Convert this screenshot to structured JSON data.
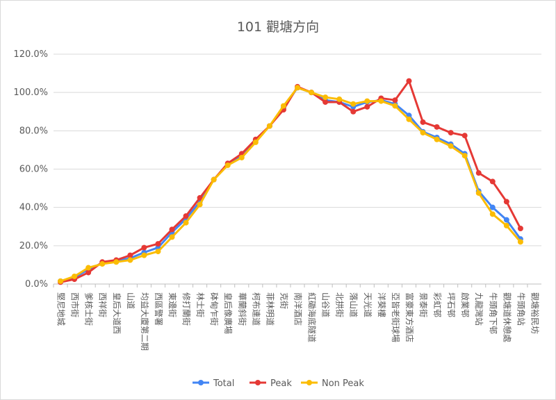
{
  "chart_data": {
    "type": "line",
    "title": "101 觀塘方向",
    "xlabel": "",
    "ylabel": "",
    "ylim": [
      0,
      120
    ],
    "yticks": [
      "0.0%",
      "20.0%",
      "40.0%",
      "60.0%",
      "80.0%",
      "100.0%",
      "120.0%"
    ],
    "grid": true,
    "legend_position": "bottom",
    "categories": [
      "堅尼地城",
      "西市街",
      "爹核士街",
      "西祥街",
      "皇后大道西",
      "山道",
      "均益大廈第二期",
      "西區警署",
      "東邊街",
      "修打蘭街",
      "林士街",
      "砵甸乍街",
      "皇后像廣場",
      "華蘭斜街",
      "柯布連道",
      "菲林明道",
      "克街",
      "南洋酒店",
      "紅磡海底隧道",
      "山谷道",
      "北拱街",
      "落山道",
      "天光道",
      "洋葵樓",
      "亞皆老街球場",
      "富豪東方酒店",
      "景泰街",
      "彩虹邨",
      "坪石邨",
      "啟業邨",
      "九龍灣站",
      "牛頭角下邨",
      "觀塘道休憩處",
      "牛頭角站",
      "觀塘裕民坊"
    ],
    "series": [
      {
        "name": "Total",
        "color": "#4285f4",
        "values": [
          1.5,
          3.5,
          7.5,
          11,
          12,
          13.5,
          16.5,
          19,
          27,
          34,
          43,
          54.5,
          62.5,
          67,
          75,
          82.5,
          92,
          102.5,
          100,
          96,
          95,
          92.5,
          95,
          96,
          94,
          88,
          79.5,
          76.5,
          73,
          68,
          48.5,
          40,
          33.5,
          23.5,
          null
        ]
      },
      {
        "name": "Peak",
        "color": "#e53935",
        "values": [
          1,
          2.5,
          6,
          11.5,
          12.5,
          15,
          19,
          21,
          28.5,
          35.5,
          45,
          54.5,
          63,
          68,
          75.5,
          82.5,
          91,
          103,
          100,
          95,
          95,
          90,
          92.5,
          97,
          96,
          106,
          84.5,
          82,
          79,
          77.5,
          58,
          53.5,
          43,
          29,
          null
        ]
      },
      {
        "name": "Non Peak",
        "color": "#fbbc04",
        "values": [
          1.5,
          4,
          8.5,
          10.5,
          11.5,
          12.5,
          15,
          17,
          24.5,
          32,
          41.5,
          54.5,
          62,
          66,
          74,
          82.5,
          93,
          102.5,
          100,
          97.5,
          96.5,
          94,
          95.5,
          95.5,
          93,
          86,
          79,
          75.5,
          72,
          67,
          47.5,
          36.5,
          30.5,
          22,
          null
        ]
      }
    ]
  }
}
